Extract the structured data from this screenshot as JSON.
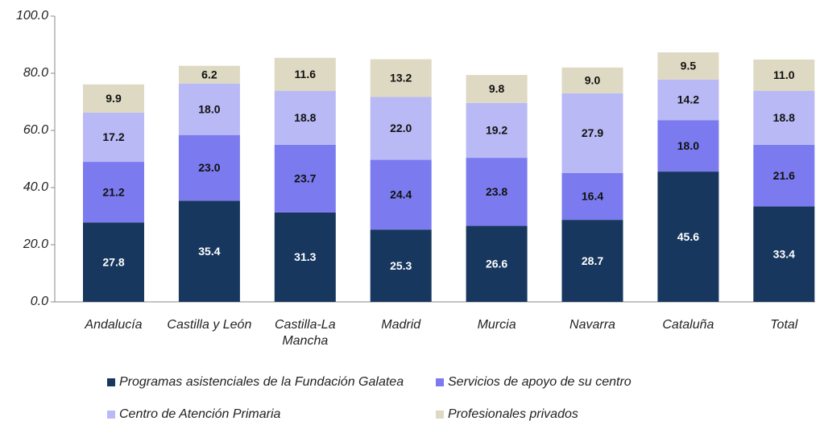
{
  "chart_data": {
    "type": "stacked_bar",
    "categories": [
      "Andalucía",
      "Castilla y León",
      "Castilla-La Mancha",
      "Madrid",
      "Murcia",
      "Navarra",
      "Cataluña",
      "Total"
    ],
    "series": [
      {
        "name": "Programas asistenciales de la Fundación Galatea",
        "color": "#17375e",
        "values": [
          27.8,
          35.4,
          31.3,
          25.3,
          26.6,
          28.7,
          45.6,
          33.4
        ],
        "value_labels": [
          "27.8",
          "35.4",
          "31.3",
          "25.3",
          "26.6",
          "28.7",
          "45.6",
          "33.4"
        ]
      },
      {
        "name": "Servicios de apoyo de su centro",
        "color": "#7b7bef",
        "values": [
          21.2,
          23.0,
          23.7,
          24.4,
          23.8,
          16.4,
          18.0,
          21.6
        ],
        "value_labels": [
          "21.2",
          "23.0",
          "23.7",
          "24.4",
          "23.8",
          "16.4",
          "18.0",
          "21.6"
        ]
      },
      {
        "name": "Centro de Atención Primaria",
        "color": "#b9b9f5",
        "values": [
          17.2,
          18.0,
          18.8,
          22.0,
          19.2,
          27.9,
          14.2,
          18.8
        ],
        "value_labels": [
          "17.2",
          "18.0",
          "18.8",
          "22.0",
          "19.2",
          "27.9",
          "14.2",
          "18.8"
        ]
      },
      {
        "name": "Profesionales privados",
        "color": "#ddd9c3",
        "values": [
          9.9,
          6.2,
          11.6,
          13.2,
          9.8,
          9.0,
          9.5,
          11.0
        ],
        "value_labels": [
          "9.9",
          "6.2",
          "11.6",
          "13.2",
          "9.8",
          "9.0",
          "9.5",
          "11.0"
        ]
      }
    ],
    "ylim": [
      0,
      100
    ],
    "yticks": [
      {
        "value": 0,
        "label": "0.0"
      },
      {
        "value": 20,
        "label": "20.0"
      },
      {
        "value": 40,
        "label": "40.0"
      },
      {
        "value": 60,
        "label": "60.0"
      },
      {
        "value": 80,
        "label": "80.0"
      },
      {
        "value": 100,
        "label": "100.0"
      }
    ]
  }
}
